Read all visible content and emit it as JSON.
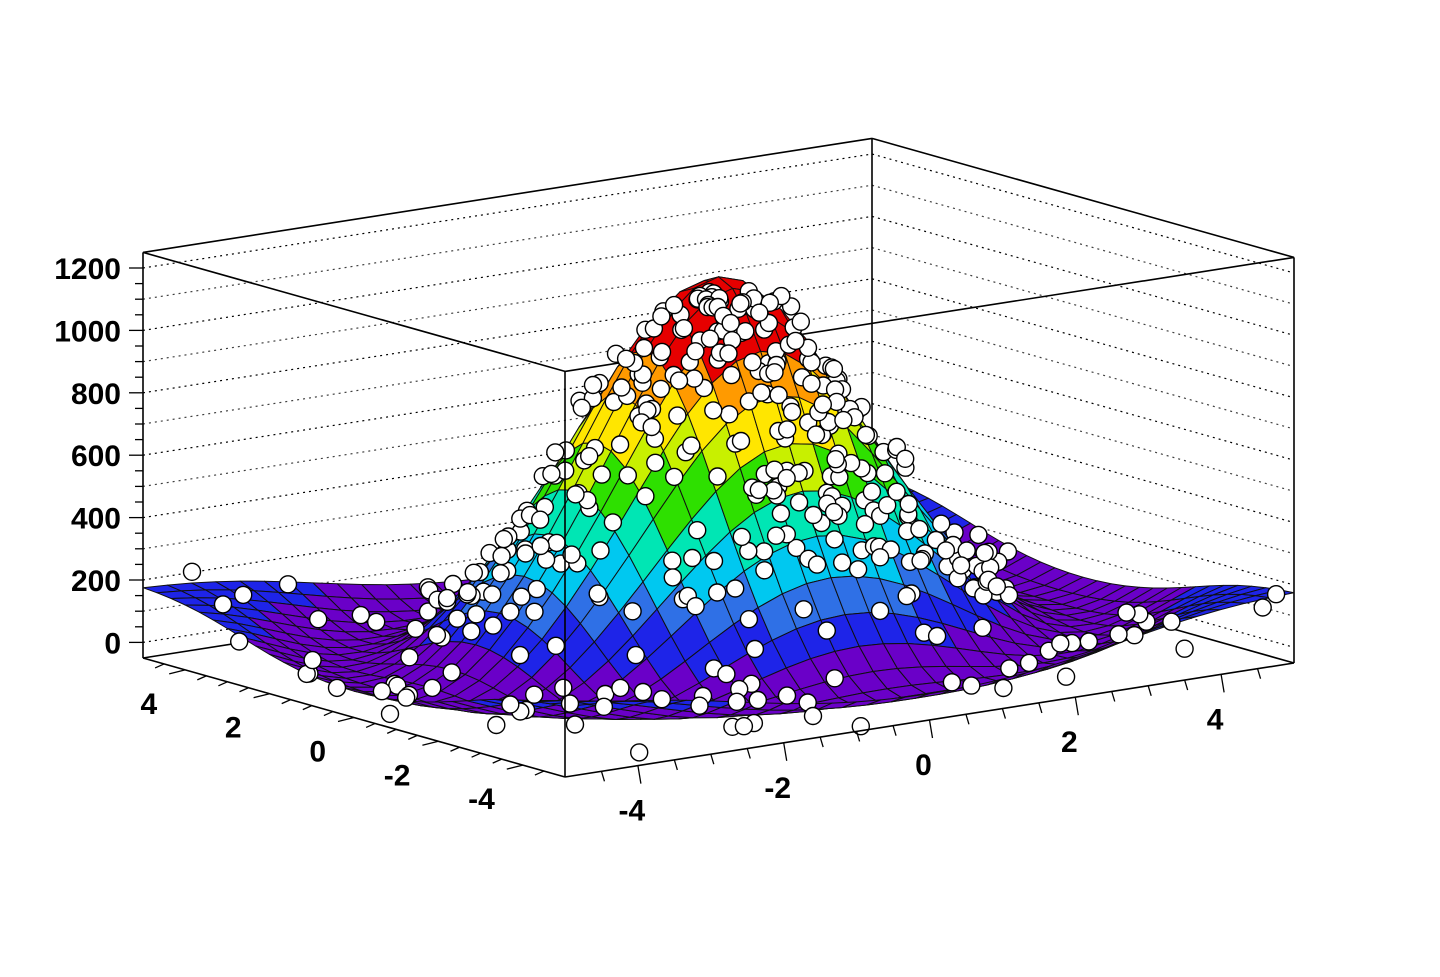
{
  "chart_data": {
    "type": "surface",
    "title": "",
    "xlabel": "",
    "ylabel": "",
    "zlabel": "",
    "xlim": [
      -5,
      5
    ],
    "ylim": [
      -5,
      5
    ],
    "zlim": [
      -50,
      1250
    ],
    "x_ticks": [
      "-4",
      "-2",
      "0",
      "2",
      "4"
    ],
    "y_ticks": [
      "-4",
      "-2",
      "0",
      "2",
      "4"
    ],
    "z_ticks": [
      "0",
      "200",
      "400",
      "600",
      "800",
      "1000",
      "1200"
    ],
    "grid": true,
    "colormap": [
      "#6a00c8",
      "#1e24e8",
      "#2f70e6",
      "#00c8f0",
      "#00e6b4",
      "#2ee000",
      "#c8f000",
      "#ffe600",
      "#ff9a00",
      "#e60000"
    ],
    "model": "z = 1000 * exp(-(x^2 + y^2)/4.5) - 150*(x^2+y^2)/20 * exp(-(x^2+y^2)/20)*... (smooth peak at origin, baseline about 150-200 at edges, trough near 0 around radius 4)",
    "surface": {
      "peak_value": 1000,
      "edge_value": 180,
      "trough_value": -20
    },
    "points": {
      "count": 400,
      "marker": "open-circle",
      "peak_max": 1100
    }
  }
}
